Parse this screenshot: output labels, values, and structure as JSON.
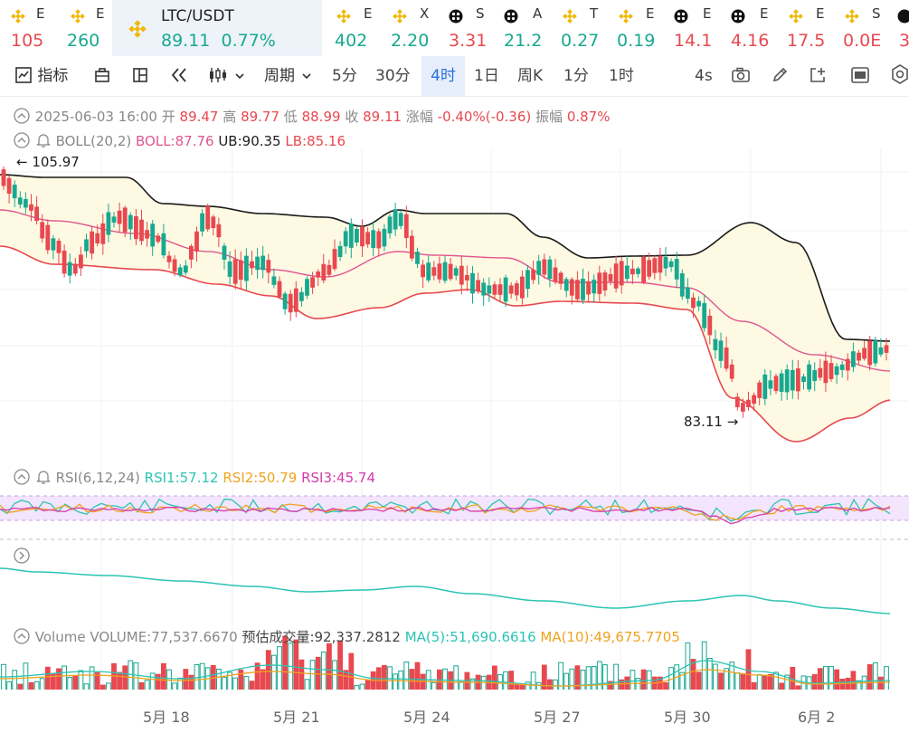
{
  "tickers": [
    {
      "name": "E",
      "price": "105",
      "dir": "dn",
      "icon": "binance"
    },
    {
      "name": "E",
      "price": "260",
      "dir": "up",
      "icon": "binance"
    },
    {
      "name": "LTC/USDT",
      "price": "89.11",
      "change": "0.77%",
      "dir": "up",
      "icon": "binance",
      "active": true
    },
    {
      "name": "E",
      "price": "402",
      "dir": "up",
      "icon": "binance"
    },
    {
      "name": "X",
      "price": "2.20",
      "dir": "up",
      "icon": "binance"
    },
    {
      "name": "S",
      "price": "3.31",
      "dir": "dn",
      "icon": "other"
    },
    {
      "name": "A",
      "price": "21.2",
      "dir": "up",
      "icon": "other"
    },
    {
      "name": "T",
      "price": "0.27",
      "dir": "up",
      "icon": "binance"
    },
    {
      "name": "E",
      "price": "0.19",
      "dir": "up",
      "icon": "binance"
    },
    {
      "name": "E",
      "price": "14.1",
      "dir": "dn",
      "icon": "other"
    },
    {
      "name": "E",
      "price": "4.16",
      "dir": "dn",
      "icon": "other"
    },
    {
      "name": "E",
      "price": "17.5",
      "dir": "dn",
      "icon": "binance"
    },
    {
      "name": "S",
      "price": "0.0E",
      "dir": "dn",
      "icon": "binance"
    },
    {
      "name": "",
      "price": "3",
      "dir": "dn",
      "icon": "other"
    }
  ],
  "toolbar": {
    "indicators": "指标",
    "period": "周期",
    "intervals": [
      "5分",
      "30分",
      "4时",
      "1日",
      "周K",
      "1分",
      "1时"
    ],
    "selected_interval": "4时",
    "refresh": "4s"
  },
  "ohlc": {
    "datetime": "2025-06-03 16:00",
    "open_label": "开",
    "open": "89.47",
    "high_label": "高",
    "high": "89.77",
    "low_label": "低",
    "low": "88.99",
    "close_label": "收",
    "close": "89.11",
    "change_label": "涨幅",
    "change": "-0.40%(-0.36)",
    "amplitude_label": "振幅",
    "amplitude": "0.87%"
  },
  "boll": {
    "label": "BOLL(20,2)",
    "boll": "BOLL:87.76",
    "ub": "UB:90.35",
    "lb": "LB:85.16"
  },
  "price_marks": {
    "high": "← 105.97",
    "low": "83.11 →"
  },
  "rsi": {
    "label": "RSI(6,12,24)",
    "rsi1": "RSI1:57.12",
    "rsi2": "RSI2:50.79",
    "rsi3": "RSI3:45.74"
  },
  "volume": {
    "label": "Volume",
    "volume": "VOLUME:77,537.6670",
    "estimated": "预估成交量:92,337.2812",
    "ma5": "MA(5):51,690.6616",
    "ma10": "MA(10):49,675.7705"
  },
  "dates": [
    "5月 18",
    "5月 21",
    "5月 24",
    "5月 27",
    "5月 30",
    "6月 2"
  ],
  "colors": {
    "up": "#18a890",
    "down": "#e8484f",
    "accent": "#2a6fd8",
    "boll_mid": "#e0558f",
    "rsi1": "#2bc4b4",
    "rsi2": "#f0a21e",
    "rsi3": "#d63aa8"
  }
}
